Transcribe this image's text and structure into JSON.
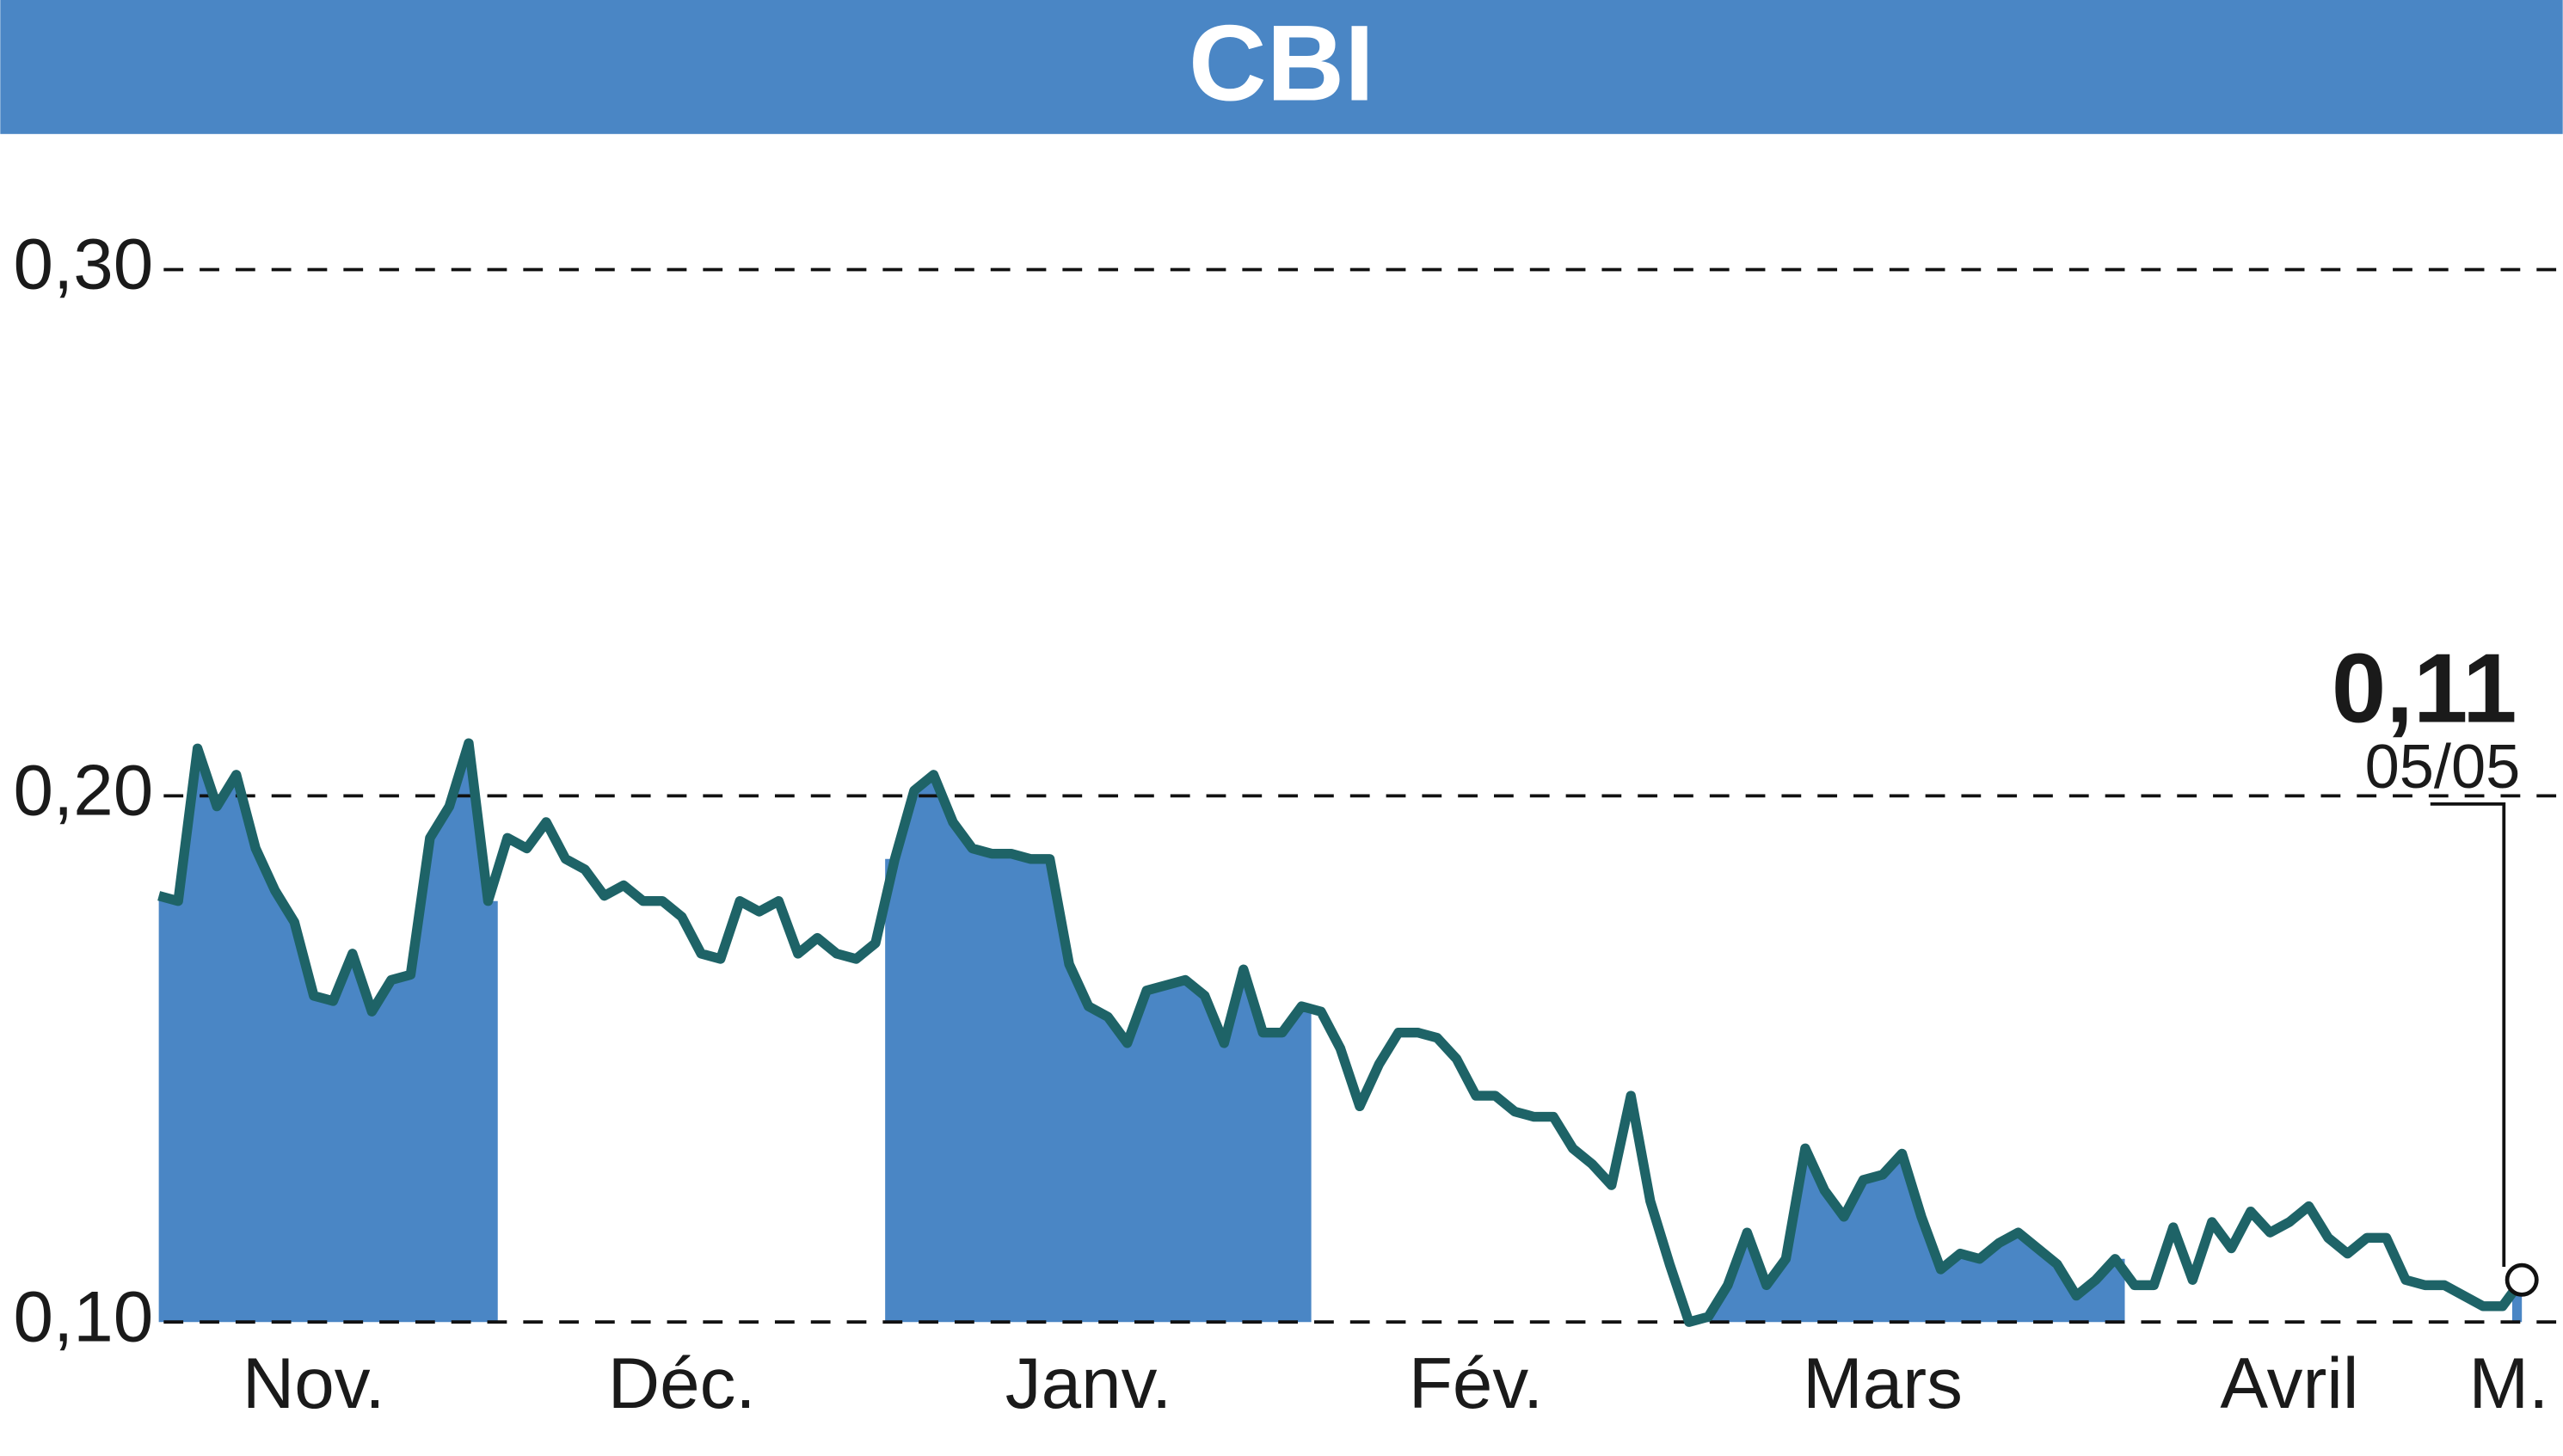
{
  "chart_data": {
    "type": "line",
    "title": "CBI",
    "categories": [
      null,
      null,
      null,
      null,
      null,
      null,
      null,
      null,
      "Nov.",
      null,
      null,
      null,
      null,
      null,
      null,
      null,
      null,
      null,
      null,
      null,
      null,
      null,
      null,
      null,
      null,
      null,
      null,
      "Déc.",
      null,
      null,
      null,
      null,
      null,
      null,
      null,
      null,
      null,
      null,
      null,
      null,
      null,
      null,
      null,
      null,
      null,
      null,
      null,
      null,
      "Janv.",
      null,
      null,
      null,
      null,
      null,
      null,
      null,
      null,
      null,
      null,
      null,
      null,
      null,
      null,
      null,
      null,
      null,
      null,
      null,
      "Fév.",
      null,
      null,
      null,
      null,
      null,
      null,
      null,
      null,
      null,
      null,
      null,
      null,
      null,
      null,
      null,
      null,
      null,
      null,
      null,
      null,
      "Mars",
      null,
      null,
      null,
      null,
      null,
      null,
      null,
      null,
      null,
      null,
      null,
      null,
      null,
      null,
      null,
      null,
      null,
      null,
      null,
      null,
      "Avril",
      null,
      null,
      null,
      null,
      null,
      null,
      null,
      null,
      null,
      null,
      null,
      "M."
    ],
    "series": [
      {
        "name": "CBI",
        "color": "#1e6367",
        "fill": "#4a86c5",
        "values": [
          0.181,
          0.18,
          0.209,
          0.198,
          0.204,
          0.19,
          0.182,
          0.176,
          0.162,
          0.161,
          0.17,
          0.159,
          0.165,
          0.166,
          0.192,
          0.198,
          0.21,
          0.18,
          0.192,
          0.19,
          0.195,
          0.188,
          0.186,
          0.181,
          0.183,
          0.18,
          0.18,
          0.177,
          0.17,
          0.169,
          0.18,
          0.178,
          0.18,
          0.17,
          0.173,
          0.17,
          0.169,
          0.172,
          0.188,
          0.201,
          0.204,
          0.195,
          0.19,
          0.189,
          0.189,
          0.188,
          0.188,
          0.168,
          0.16,
          0.158,
          0.153,
          0.163,
          0.164,
          0.165,
          0.162,
          0.153,
          0.167,
          0.155,
          0.155,
          0.16,
          0.159,
          0.152,
          0.141,
          0.149,
          0.155,
          0.155,
          0.154,
          0.15,
          0.143,
          0.143,
          0.14,
          0.139,
          0.139,
          0.133,
          0.13,
          0.126,
          0.143,
          0.123,
          0.111,
          0.1,
          0.101,
          0.107,
          0.117,
          0.107,
          0.112,
          0.133,
          0.125,
          0.12,
          0.127,
          0.128,
          0.132,
          0.12,
          0.11,
          0.113,
          0.112,
          0.115,
          0.117,
          0.114,
          0.111,
          0.105,
          0.108,
          0.112,
          0.107,
          0.107,
          0.118,
          0.108,
          0.119,
          0.114,
          0.121,
          0.117,
          0.119,
          0.122,
          0.116,
          0.113,
          0.116,
          0.116,
          0.108,
          0.107,
          0.107,
          0.105,
          0.103,
          0.103,
          0.108
        ]
      }
    ],
    "shaded_ranges": [
      [
        0,
        17
      ],
      [
        38,
        59
      ],
      [
        79,
        101
      ],
      [
        122,
        122
      ]
    ],
    "ylim": [
      0.1,
      0.325
    ],
    "yticks": [
      {
        "value": 0.1,
        "label": "0,10"
      },
      {
        "value": 0.2,
        "label": "0,20"
      },
      {
        "value": 0.3,
        "label": "0,30"
      }
    ],
    "grid": true,
    "last_value_label": "0,11",
    "last_date_label": "05/05"
  }
}
